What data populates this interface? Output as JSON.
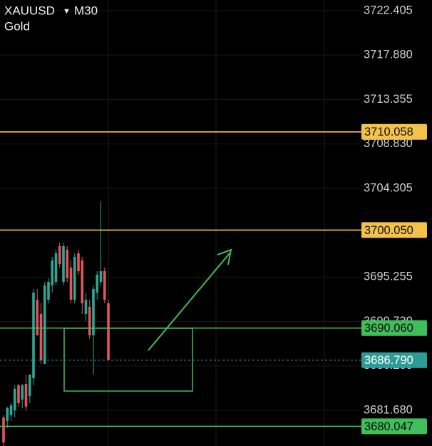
{
  "chart_data": {
    "type": "candlestick",
    "symbol": "XAUUSD",
    "timeframe": "M30",
    "subtitle": "Gold",
    "ylim": [
      3678.04,
      3723.5
    ],
    "yticks": [
      3722.405,
      {
        "value": 3717.88,
        "label": "3717.880"
      },
      3713.355,
      {
        "value": 3708.83,
        "label": "3708.830"
      },
      3704.305,
      3695.255,
      {
        "value": 3690.73,
        "label": "3690.730"
      },
      {
        "value": 3686.2,
        "label": "3686.200"
      },
      {
        "value": 3681.68,
        "label": "3681.680"
      }
    ],
    "up_color": "#2fa594",
    "down_color": "#e2555c",
    "open": [
      3680.95,
      3680.59,
      3681.17,
      3681.68,
      3684.23,
      3682.77,
      3684.37,
      3683.14,
      3684.95,
      3692.95,
      3691.5,
      3686.41,
      3692.95,
      3694.41,
      3694.77,
      3698.41,
      3694.77,
      3698.05,
      3696.23,
      3692.95,
      3697.68,
      3696.95,
      3691.5,
      3692.23,
      3689.32,
      3693.68,
      3694.77,
      3695.86,
      3692.59
    ],
    "high": [
      3681.17,
      3682.05,
      3682.41,
      3684.23,
      3684.37,
      3684.37,
      3685.32,
      3685.32,
      3694.05,
      3694.05,
      3692.59,
      3694.77,
      3695.14,
      3697.32,
      3698.05,
      3698.77,
      3698.77,
      3698.41,
      3696.95,
      3697.68,
      3698.05,
      3697.32,
      3693.68,
      3692.95,
      3694.41,
      3695.86,
      3702.99,
      3696.23,
      3692.95
    ],
    "low": [
      3678.05,
      3679.86,
      3680.59,
      3680.95,
      3682.05,
      3681.9,
      3681.68,
      3682.41,
      3684.23,
      3689.32,
      3686.41,
      3686.41,
      3692.59,
      3693.68,
      3694.41,
      3696.23,
      3694.41,
      3694.77,
      3692.59,
      3692.59,
      3695.5,
      3691.5,
      3690.77,
      3688.95,
      3685.32,
      3692.95,
      3694.41,
      3692.59,
      3686.77
    ],
    "close": [
      3678.4,
      3681.9,
      3682.19,
      3683.86,
      3682.41,
      3684.23,
      3682.05,
      3685.32,
      3693.68,
      3689.32,
      3686.77,
      3694.41,
      3694.77,
      3696.95,
      3697.68,
      3696.59,
      3698.41,
      3695.14,
      3692.95,
      3697.32,
      3695.86,
      3692.59,
      3692.95,
      3689.32,
      3694.05,
      3695.5,
      3695.86,
      3692.95,
      3686.79
    ],
    "levels": [
      {
        "value": 3710.058,
        "label": "3710.058",
        "color": "#f3c24a",
        "text_color": "#111111",
        "dashed": false
      },
      {
        "value": 3700.05,
        "label": "3700.050",
        "color": "#f3c24a",
        "text_color": "#111111",
        "dashed": false
      },
      {
        "value": 3690.06,
        "label": "3690.060",
        "color": "#3fbf5a",
        "text_color": "#0a0a0a",
        "dashed": false
      },
      {
        "value": 3686.79,
        "label": "3686.790",
        "color": "#2e9c96",
        "text_color": "#ffffff",
        "dashed": true
      },
      {
        "value": 3680.047,
        "label": "3680.047",
        "color": "#3fbf5a",
        "text_color": "#0a0a0a",
        "dashed": false
      }
    ]
  }
}
